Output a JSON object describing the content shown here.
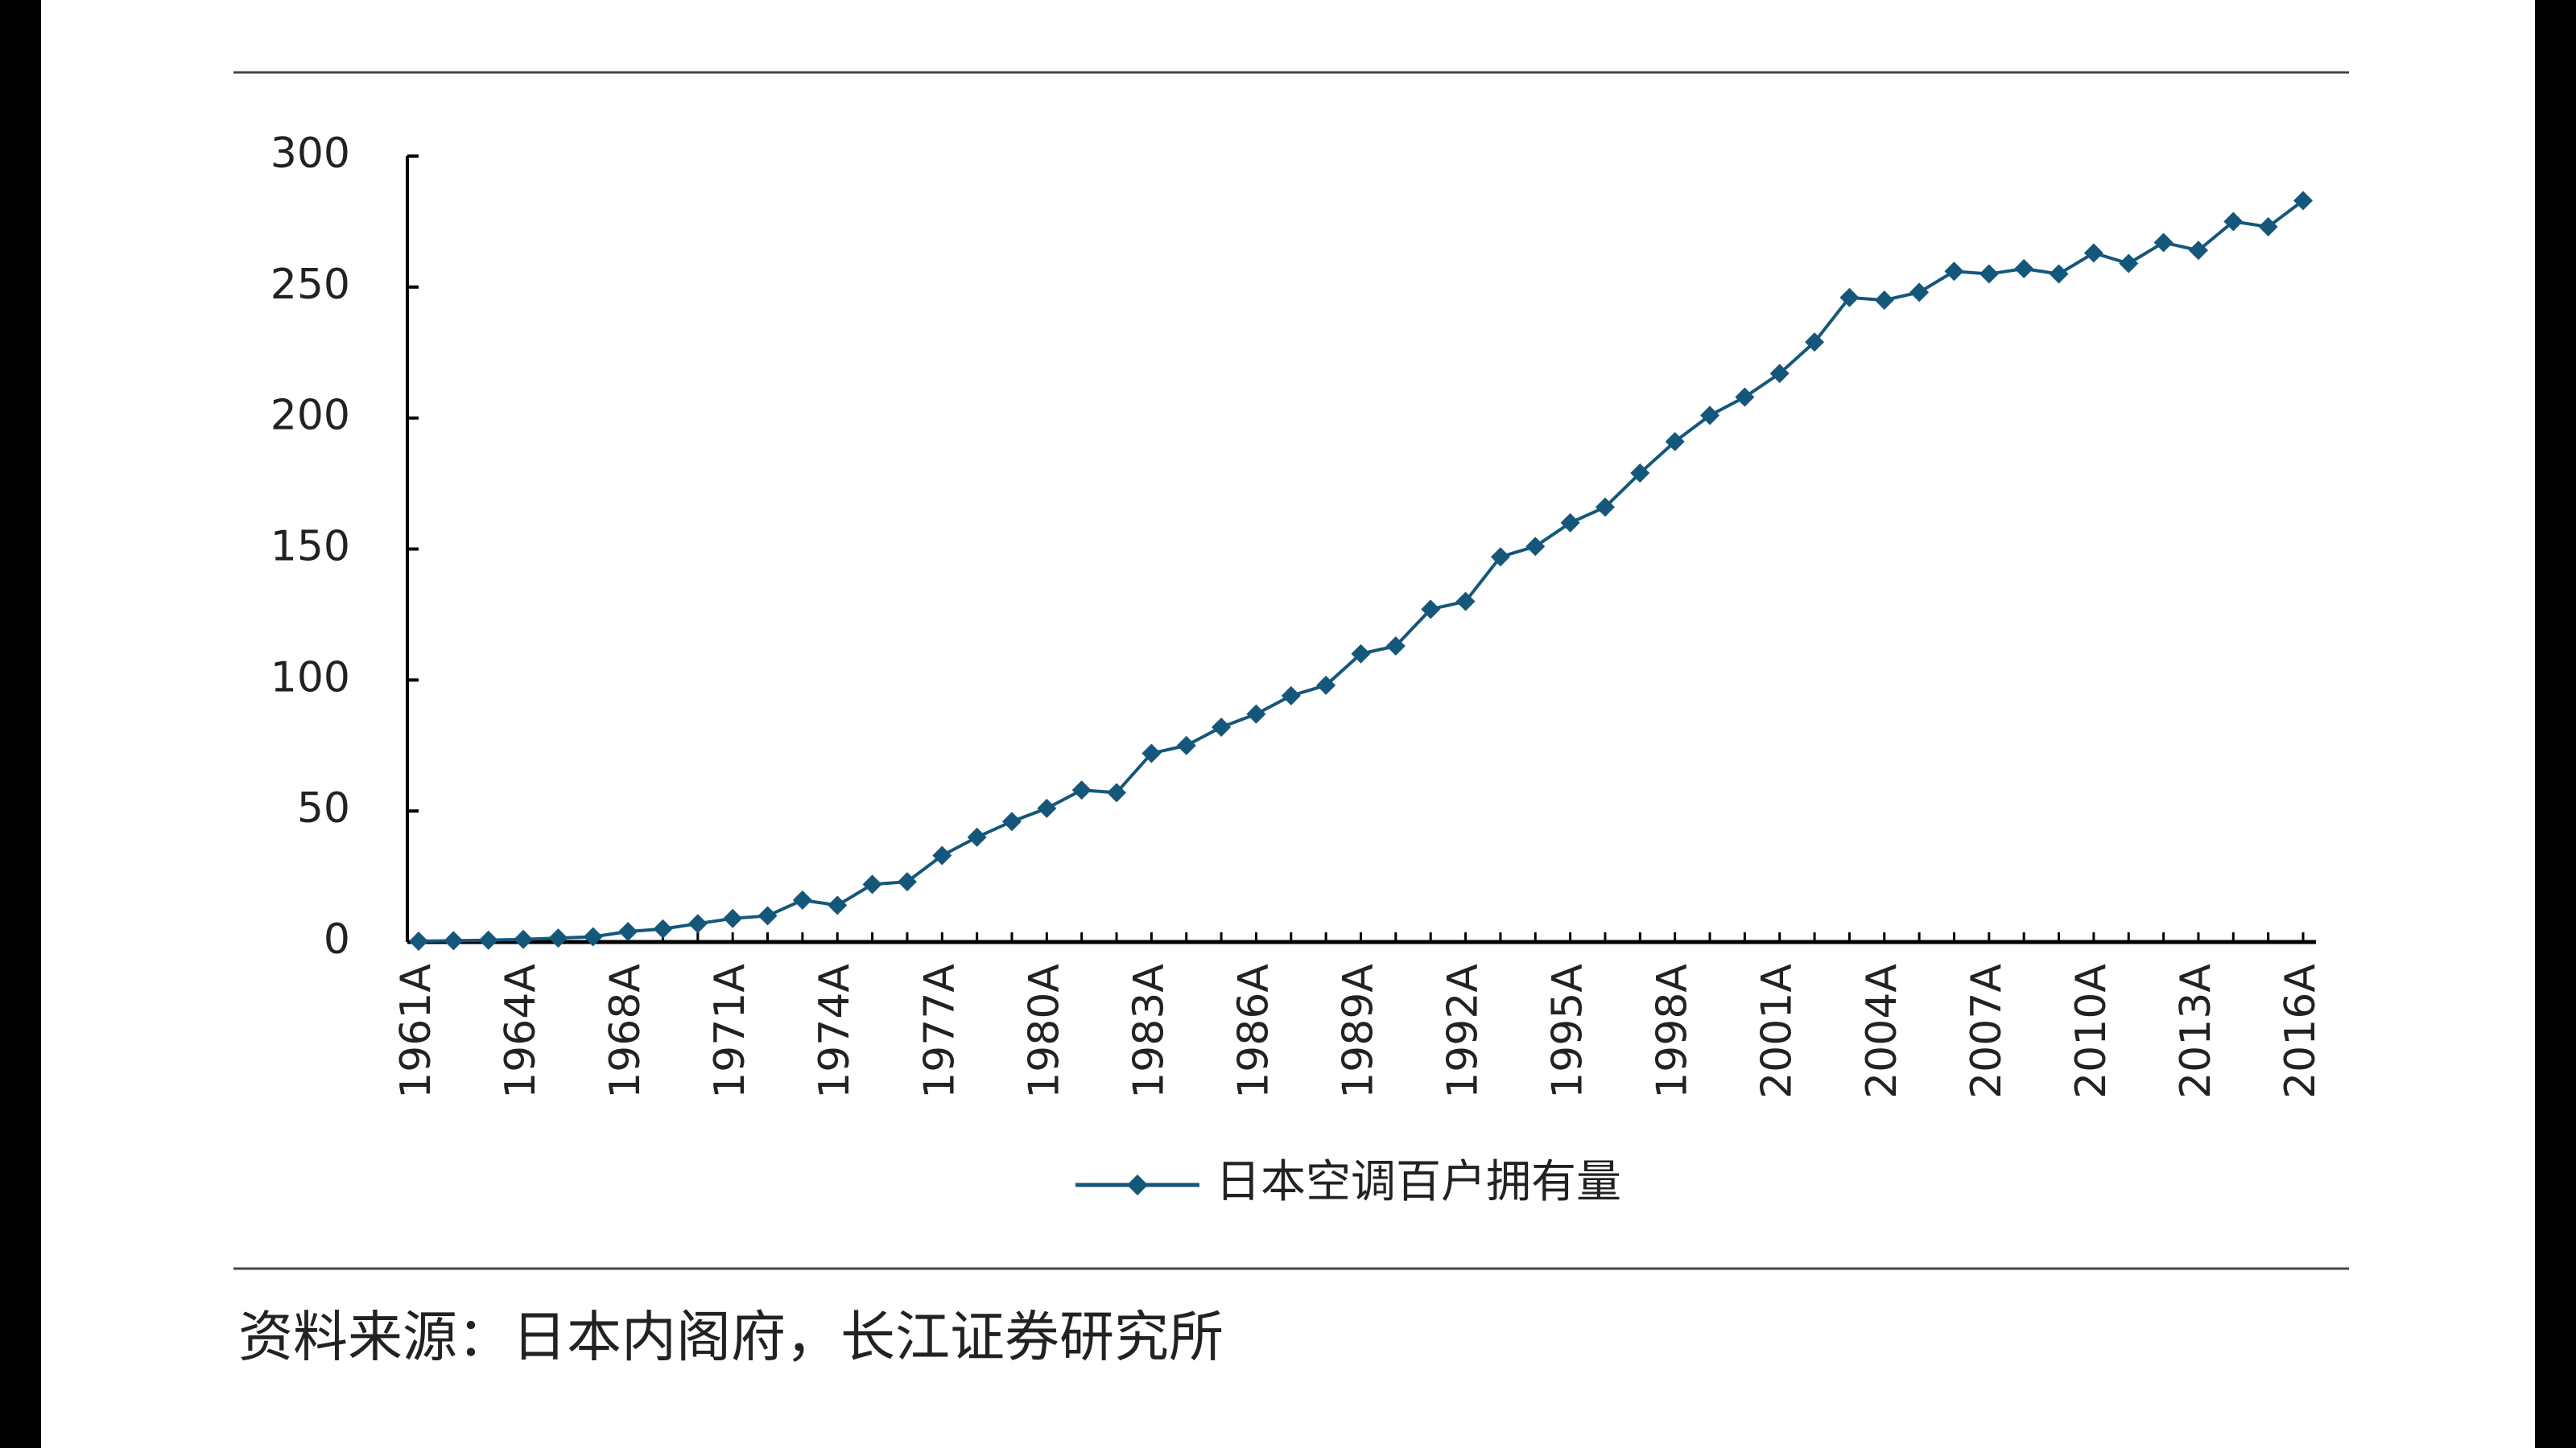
{
  "chart_data": {
    "type": "line",
    "categories": [
      "1961A",
      null,
      null,
      "1964A",
      null,
      null,
      "1968A",
      null,
      null,
      "1971A",
      null,
      null,
      "1974A",
      null,
      null,
      "1977A",
      null,
      null,
      "1980A",
      null,
      null,
      "1983A",
      null,
      null,
      "1986A",
      null,
      null,
      "1989A",
      null,
      null,
      "1992A",
      null,
      null,
      "1995A",
      null,
      null,
      "1998A",
      null,
      null,
      "2001A",
      null,
      null,
      "2004A",
      null,
      null,
      "2007A",
      null,
      null,
      "2010A",
      null,
      null,
      "2013A",
      null,
      null,
      "2016A"
    ],
    "series": [
      {
        "name": "日本空调百户拥有量",
        "color": "#15577a",
        "values": [
          0.3,
          0.5,
          0.7,
          1,
          1.5,
          2,
          4,
          5,
          7,
          9,
          10,
          16,
          14,
          22,
          23,
          33,
          40,
          46,
          51,
          58,
          57,
          72,
          75,
          82,
          87,
          94,
          98,
          110,
          113,
          127,
          130,
          147,
          151,
          160,
          166,
          179,
          191,
          201,
          208,
          217,
          229,
          246,
          245,
          248,
          256,
          255,
          257,
          255,
          263,
          259,
          267,
          264,
          275,
          273,
          283
        ]
      }
    ],
    "ylim": [
      0,
      300
    ],
    "yticks": [
      0,
      50,
      100,
      150,
      200,
      250,
      300
    ],
    "legend": "bottom",
    "source": "资料来源：日本内阁府，长江证券研究所"
  }
}
